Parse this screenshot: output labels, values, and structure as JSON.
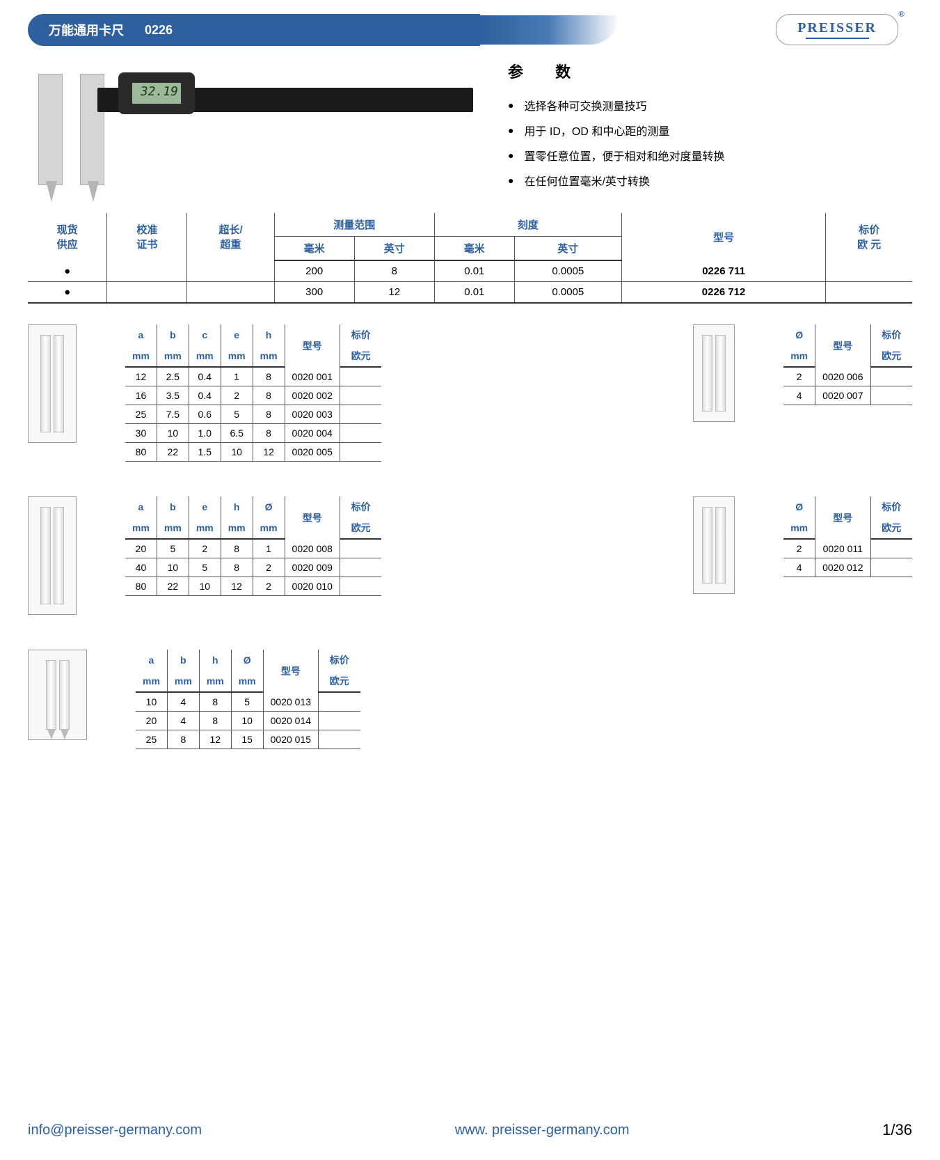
{
  "header": {
    "title": "万能通用卡尺",
    "code": "0226",
    "brand": "PREISSER"
  },
  "product_image": {
    "lcd_value": "32.19"
  },
  "params": {
    "title": "参    数",
    "items": [
      "选择各种可交换测量技巧",
      "用于 ID，OD 和中心距的测量",
      "置零任意位置，便于相对和绝对度量转换",
      "在任何位置毫米/英寸转换"
    ]
  },
  "main_table": {
    "headers_row1": [
      "现货",
      "校准",
      "超长/",
      "测量范围",
      "刻度",
      "型号",
      "标价"
    ],
    "headers_row2": [
      "供应",
      "证书",
      "超重",
      "毫米",
      "英寸",
      "毫米",
      "英寸",
      "",
      "欧 元"
    ],
    "rows": [
      {
        "stock": "●",
        "cert": "",
        "over": "",
        "range_mm": "200",
        "range_in": "8",
        "res_mm": "0.01",
        "res_in": "0.0005",
        "model": "0226 711",
        "price": ""
      },
      {
        "stock": "●",
        "cert": "",
        "over": "",
        "range_mm": "300",
        "range_in": "12",
        "res_mm": "0.01",
        "res_in": "0.0005",
        "model": "0226 712",
        "price": ""
      }
    ]
  },
  "table_a": {
    "headers1": [
      "a",
      "b",
      "c",
      "e",
      "h",
      "型号",
      "标价"
    ],
    "headers2": [
      "mm",
      "mm",
      "mm",
      "mm",
      "mm",
      "",
      "欧元"
    ],
    "rows": [
      [
        "12",
        "2.5",
        "0.4",
        "1",
        "8",
        "0020 001",
        ""
      ],
      [
        "16",
        "3.5",
        "0.4",
        "2",
        "8",
        "0020 002",
        ""
      ],
      [
        "25",
        "7.5",
        "0.6",
        "5",
        "8",
        "0020 003",
        ""
      ],
      [
        "30",
        "10",
        "1.0",
        "6.5",
        "8",
        "0020 004",
        ""
      ],
      [
        "80",
        "22",
        "1.5",
        "10",
        "12",
        "0020 005",
        ""
      ]
    ]
  },
  "table_b": {
    "headers1": [
      "Ø",
      "型号",
      "标价"
    ],
    "headers2": [
      "mm",
      "",
      "欧元"
    ],
    "rows": [
      [
        "2",
        "0020 006",
        ""
      ],
      [
        "4",
        "0020 007",
        ""
      ]
    ]
  },
  "table_c": {
    "headers1": [
      "a",
      "b",
      "e",
      "h",
      "Ø",
      "型号",
      "标价"
    ],
    "headers2": [
      "mm",
      "mm",
      "mm",
      "mm",
      "mm",
      "",
      "欧元"
    ],
    "rows": [
      [
        "20",
        "5",
        "2",
        "8",
        "1",
        "0020 008",
        ""
      ],
      [
        "40",
        "10",
        "5",
        "8",
        "2",
        "0020 009",
        ""
      ],
      [
        "80",
        "22",
        "10",
        "12",
        "2",
        "0020 010",
        ""
      ]
    ]
  },
  "table_d": {
    "headers1": [
      "Ø",
      "型号",
      "标价"
    ],
    "headers2": [
      "mm",
      "",
      "欧元"
    ],
    "rows": [
      [
        "2",
        "0020 011",
        ""
      ],
      [
        "4",
        "0020 012",
        ""
      ]
    ]
  },
  "table_e": {
    "headers1": [
      "a",
      "b",
      "h",
      "Ø",
      "型号",
      "标价"
    ],
    "headers2": [
      "mm",
      "mm",
      "mm",
      "mm",
      "",
      "欧元"
    ],
    "rows": [
      [
        "10",
        "4",
        "8",
        "5",
        "0020 013",
        ""
      ],
      [
        "20",
        "4",
        "8",
        "10",
        "0020 014",
        ""
      ],
      [
        "25",
        "8",
        "12",
        "15",
        "0020 015",
        ""
      ]
    ]
  },
  "footer": {
    "email": "info@preisser-germany.com",
    "web": "www. preisser-germany.com",
    "page": "1/36"
  },
  "colors": {
    "blue": "#2e5f9e",
    "text": "#000000"
  }
}
